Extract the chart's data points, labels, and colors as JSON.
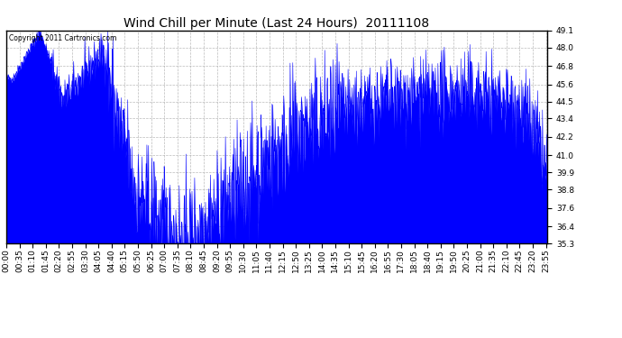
{
  "title": "Wind Chill per Minute (Last 24 Hours)  20111108",
  "copyright": "Copyright 2011 Cartronics.com",
  "line_color": "#0000FF",
  "bg_color": "#FFFFFF",
  "grid_color": "#AAAAAA",
  "ylim": [
    35.3,
    49.1
  ],
  "yticks": [
    35.3,
    36.4,
    37.6,
    38.8,
    39.9,
    41.0,
    42.2,
    43.4,
    44.5,
    45.6,
    46.8,
    48.0,
    49.1
  ],
  "title_fontsize": 10,
  "tick_fontsize": 6.5,
  "copyright_fontsize": 5.5
}
